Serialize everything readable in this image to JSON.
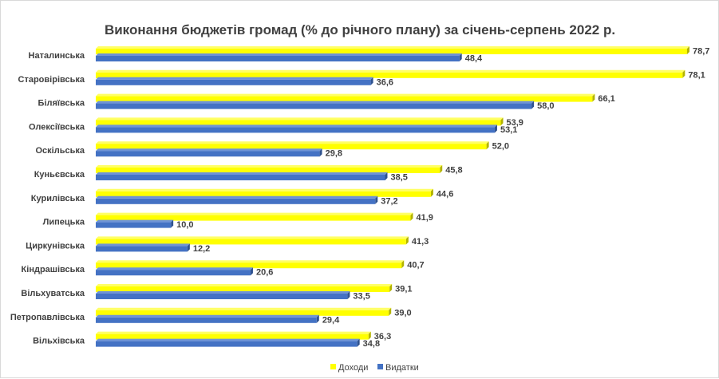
{
  "chart_data": {
    "type": "bar",
    "orientation": "horizontal",
    "title": "Виконання бюджетів громад (% до річного плану) за січень-серпень 2022 р.",
    "categories": [
      "Наталинська",
      "Старовірівська",
      "Біляївська",
      "Олексіївська",
      "Оскільська",
      "Куньєвська",
      "Курилівська",
      "Липецька",
      "Циркунівська",
      "Кіндрашівська",
      "Вільхуватська",
      "Петропавлівська",
      "Вільхівська"
    ],
    "series": [
      {
        "name": "Доходи",
        "color": "#ffff00",
        "values": [
          78.7,
          78.1,
          66.1,
          53.9,
          52.0,
          45.8,
          44.6,
          41.9,
          41.3,
          40.7,
          39.1,
          39.0,
          36.3
        ]
      },
      {
        "name": "Видатки",
        "color": "#4472c4",
        "values": [
          48.4,
          36.6,
          58.0,
          53.1,
          29.8,
          38.5,
          37.2,
          10.0,
          12.2,
          20.6,
          33.5,
          29.4,
          34.8
        ]
      }
    ],
    "value_labels": {
      "Доходи": [
        "78,7",
        "78,1",
        "66,1",
        "53,9",
        "52,0",
        "45,8",
        "44,6",
        "41,9",
        "41,3",
        "40,7",
        "39,1",
        "39,0",
        "36,3"
      ],
      "Видатки": [
        "48,4",
        "36,6",
        "58,0",
        "53,1",
        "29,8",
        "38,5",
        "37,2",
        "10,0",
        "12,2",
        "20,6",
        "33,5",
        "29,4",
        "34,8"
      ]
    },
    "xlim": [
      0,
      80
    ],
    "grid": false,
    "legend_position": "bottom",
    "style": "3d"
  }
}
